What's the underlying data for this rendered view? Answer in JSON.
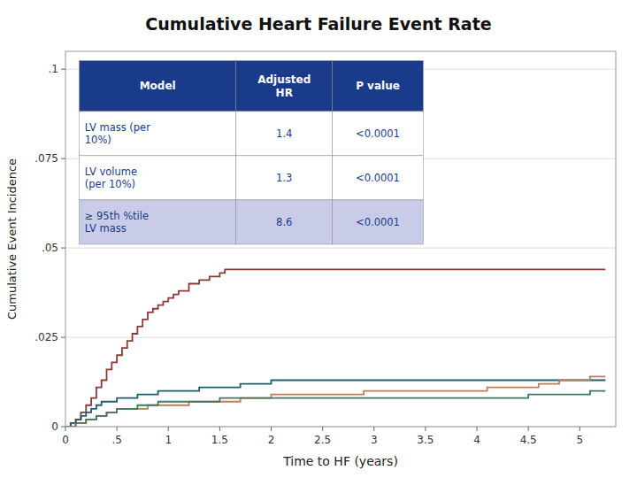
{
  "chart_data": {
    "type": "step",
    "title": "Cumulative Heart Failure Event Rate",
    "x_label": "Time to HF (years)",
    "y_label": "Cumulative Event Incidence",
    "xlim": [
      0,
      5.35
    ],
    "ylim": [
      0,
      0.105
    ],
    "xticks": [
      0,
      {
        "value": 0.5,
        "label": ".5"
      },
      1,
      1.5,
      2,
      2.5,
      3,
      3.5,
      4,
      4.5,
      5
    ],
    "yticks": [
      0,
      {
        "value": 0.025,
        "label": ".025"
      },
      {
        "value": 0.05,
        "label": ".05"
      },
      {
        "value": 0.075,
        "label": ".075"
      },
      {
        "value": 0.1,
        "label": ".1"
      }
    ],
    "grid": "y",
    "series": [
      {
        "color": "#8b3a3a",
        "x": [
          0,
          0.05,
          0.1,
          0.15,
          0.2,
          0.25,
          0.3,
          0.35,
          0.4,
          0.45,
          0.5,
          0.55,
          0.6,
          0.65,
          0.7,
          0.75,
          0.8,
          0.85,
          0.9,
          0.95,
          1.0,
          1.05,
          1.1,
          1.2,
          1.3,
          1.4,
          1.5,
          1.55,
          1.6,
          1.65,
          1.7,
          1.8,
          1.9,
          2.0,
          2.1,
          2.2,
          2.3,
          2.4,
          2.5,
          2.6,
          2.7,
          2.8,
          2.9,
          3.0,
          3.2,
          3.4,
          3.6,
          3.8,
          4.0,
          4.2,
          4.4,
          4.5,
          4.6,
          4.7,
          4.8,
          4.9,
          5.0,
          5.1,
          5.25
        ],
        "values": [
          0,
          0.001,
          0.002,
          0.004,
          0.006,
          0.008,
          0.011,
          0.013,
          0.016,
          0.018,
          0.02,
          0.022,
          0.024,
          0.026,
          0.028,
          0.03,
          0.032,
          0.033,
          0.034,
          0.035,
          0.036,
          0.037,
          0.038,
          0.04,
          0.041,
          0.042,
          0.043,
          0.044,
          0.044,
          0.044,
          0.044,
          0.044,
          0.044,
          0.044,
          0.044,
          0.044,
          0.044,
          0.044,
          0.044,
          0.044,
          0.044,
          0.044,
          0.044,
          0.044,
          0.044,
          0.044,
          0.044,
          0.044,
          0.044,
          0.044,
          0.044,
          0.044,
          0.044,
          0.044,
          0.044,
          0.044,
          0.044,
          0.044,
          0.044
        ]
      },
      {
        "color": "#1f5f6b",
        "x": [
          0,
          0.05,
          0.1,
          0.15,
          0.2,
          0.25,
          0.3,
          0.35,
          0.4,
          0.5,
          0.6,
          0.7,
          0.8,
          0.9,
          1.0,
          1.1,
          1.2,
          1.3,
          1.4,
          1.5,
          1.6,
          1.7,
          1.8,
          1.9,
          2.0,
          2.1,
          2.2,
          2.5,
          2.8,
          3.0,
          3.2,
          3.5,
          3.8,
          4.0,
          4.2,
          4.5,
          4.8,
          5.0,
          5.25
        ],
        "values": [
          0,
          0.001,
          0.002,
          0.003,
          0.004,
          0.005,
          0.006,
          0.007,
          0.007,
          0.008,
          0.008,
          0.009,
          0.009,
          0.01,
          0.01,
          0.01,
          0.01,
          0.011,
          0.011,
          0.011,
          0.011,
          0.012,
          0.012,
          0.012,
          0.013,
          0.013,
          0.013,
          0.013,
          0.013,
          0.013,
          0.013,
          0.013,
          0.013,
          0.013,
          0.013,
          0.013,
          0.013,
          0.013,
          0.013
        ]
      },
      {
        "color": "#c47a5a",
        "x": [
          0,
          0.1,
          0.2,
          0.3,
          0.4,
          0.5,
          0.6,
          0.7,
          0.8,
          0.9,
          1.0,
          1.1,
          1.2,
          1.3,
          1.4,
          1.5,
          1.6,
          1.7,
          1.8,
          1.9,
          2.0,
          2.1,
          2.2,
          2.3,
          2.5,
          2.7,
          2.9,
          3.1,
          3.3,
          3.5,
          3.7,
          4.0,
          4.1,
          4.3,
          4.5,
          4.6,
          4.7,
          4.8,
          5.0,
          5.1,
          5.25
        ],
        "values": [
          0,
          0.001,
          0.002,
          0.003,
          0.004,
          0.005,
          0.005,
          0.005,
          0.006,
          0.006,
          0.006,
          0.006,
          0.007,
          0.007,
          0.007,
          0.007,
          0.007,
          0.008,
          0.008,
          0.008,
          0.009,
          0.009,
          0.009,
          0.009,
          0.009,
          0.009,
          0.01,
          0.01,
          0.01,
          0.01,
          0.01,
          0.01,
          0.011,
          0.011,
          0.011,
          0.012,
          0.012,
          0.013,
          0.013,
          0.014,
          0.014
        ]
      },
      {
        "color": "#3d7a5f",
        "x": [
          0,
          0.1,
          0.2,
          0.3,
          0.4,
          0.5,
          0.6,
          0.7,
          0.8,
          0.9,
          1.0,
          1.1,
          1.2,
          1.3,
          1.4,
          1.5,
          1.6,
          1.7,
          1.8,
          1.9,
          2.0,
          2.2,
          2.4,
          2.6,
          2.8,
          3.0,
          3.2,
          3.4,
          3.6,
          3.8,
          4.0,
          4.2,
          4.4,
          4.5,
          4.6,
          4.7,
          4.8,
          5.0,
          5.1,
          5.25
        ],
        "values": [
          0,
          0.001,
          0.002,
          0.003,
          0.004,
          0.005,
          0.005,
          0.006,
          0.006,
          0.007,
          0.007,
          0.007,
          0.007,
          0.007,
          0.007,
          0.008,
          0.008,
          0.008,
          0.008,
          0.008,
          0.008,
          0.008,
          0.008,
          0.008,
          0.008,
          0.008,
          0.008,
          0.008,
          0.008,
          0.008,
          0.008,
          0.008,
          0.008,
          0.009,
          0.009,
          0.009,
          0.009,
          0.009,
          0.01,
          0.01
        ]
      }
    ],
    "table": {
      "header_color": "#1a3a8a",
      "row_colors": [
        "#ffffff",
        "#ffffff",
        "#c8cce8"
      ],
      "columns": [
        "Model",
        "Adjusted\nHR",
        "P value"
      ],
      "rows": [
        [
          "LV mass (per\n10%)",
          "1.4",
          "<0.0001"
        ],
        [
          "LV volume\n(per 10%)",
          "1.3",
          "<0.0001"
        ],
        [
          "≥ 95th %tile\nLV mass",
          "8.6",
          "<0.0001"
        ]
      ]
    }
  }
}
